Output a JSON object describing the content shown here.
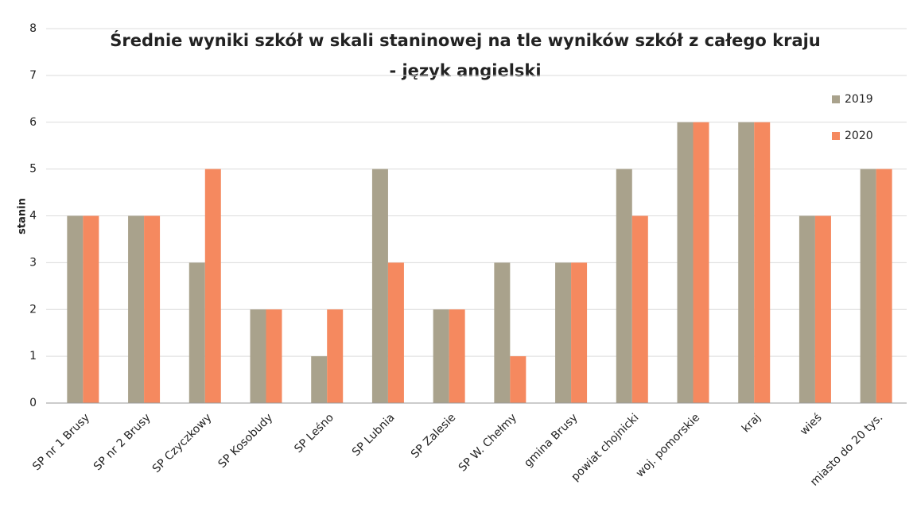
{
  "chart_data": {
    "type": "bar",
    "title": [
      "Średnie wyniki szkół w skali staninowej na tle wyników szkół z całego kraju",
      "-  język angielski"
    ],
    "y_label": "stanin",
    "categories": [
      "SP nr 1 Brusy",
      "SP nr 2 Brusy",
      "SP Czyczkowy",
      "SP Kosobudy",
      "SP Leśno",
      "SP Lubnia",
      "SP Zalesie",
      "SP W. Chełmy",
      "gmina Brusy",
      "powiat chojnicki",
      "woj. pomorskie",
      "kraj",
      "wieś",
      "miasto do 20 tys."
    ],
    "series": [
      {
        "name": "2019",
        "color": "#a9a28c",
        "values": [
          4,
          4,
          3,
          2,
          1,
          5,
          2,
          3,
          3,
          5,
          6,
          6,
          4,
          5
        ]
      },
      {
        "name": "2020",
        "color": "#f5895f",
        "values": [
          4,
          4,
          5,
          2,
          2,
          3,
          2,
          1,
          3,
          4,
          6,
          6,
          4,
          5
        ]
      }
    ],
    "ylim": [
      0,
      8
    ],
    "yticks": [
      0,
      1,
      2,
      3,
      4,
      5,
      6,
      7,
      8
    ],
    "grid": true,
    "legend": "top-right"
  }
}
